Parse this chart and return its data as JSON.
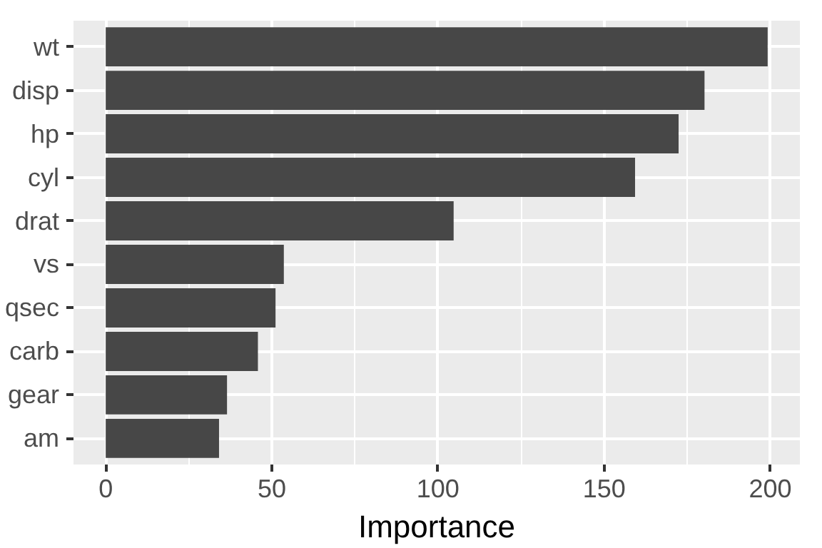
{
  "chart_data": {
    "type": "bar",
    "orientation": "horizontal",
    "xlabel": "Importance",
    "categories": [
      "wt",
      "disp",
      "hp",
      "cyl",
      "drat",
      "vs",
      "qsec",
      "carb",
      "gear",
      "am"
    ],
    "values": [
      199.2,
      180.2,
      172.4,
      159.3,
      104.7,
      53.6,
      51.1,
      45.8,
      36.5,
      34.1
    ],
    "color": "#474747",
    "xlim": [
      -9.7,
      208.9
    ],
    "xticks": [
      0,
      50,
      100,
      150,
      200
    ],
    "grid": true
  }
}
